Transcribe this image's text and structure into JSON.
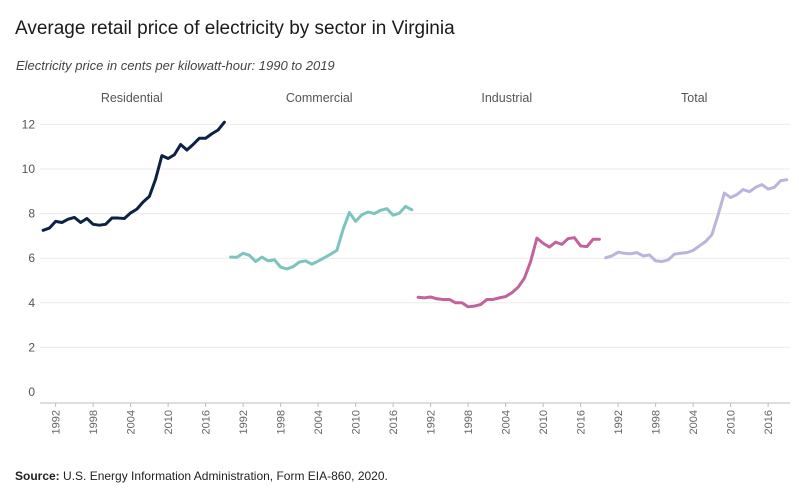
{
  "title": "Average retail price of electricity by sector in Virginia",
  "subtitle": "Electricity price in cents per kilowatt-hour: 1990 to 2019",
  "source": {
    "label": "Source:",
    "text": "U.S. Energy Information Administration, Form EIA-860, 2020."
  },
  "chart_data": {
    "type": "line",
    "title": "Average retail price of electricity by sector in Virginia",
    "ylabel": "Electricity price in cents per kilowatt-hour",
    "ylim": [
      0,
      12.5
    ],
    "yticks": [
      0,
      2,
      4,
      6,
      8,
      10,
      12
    ],
    "xticks": [
      1992,
      1998,
      2004,
      2010,
      2016
    ],
    "xlim": [
      1989.5,
      2019.5
    ],
    "grid": true,
    "x": [
      1990,
      1991,
      1992,
      1993,
      1994,
      1995,
      1996,
      1997,
      1998,
      1999,
      2000,
      2001,
      2002,
      2003,
      2004,
      2005,
      2006,
      2007,
      2008,
      2009,
      2010,
      2011,
      2012,
      2013,
      2014,
      2015,
      2016,
      2017,
      2018,
      2019
    ],
    "series": [
      {
        "name": "Residential",
        "color": "#0d2240",
        "values": [
          7.25,
          7.35,
          7.65,
          7.6,
          7.75,
          7.83,
          7.6,
          7.78,
          7.52,
          7.48,
          7.52,
          7.8,
          7.8,
          7.78,
          8.03,
          8.2,
          8.52,
          8.77,
          9.55,
          10.6,
          10.47,
          10.64,
          11.1,
          10.85,
          11.1,
          11.38,
          11.38,
          11.58,
          11.75,
          12.1
        ]
      },
      {
        "name": "Commercial",
        "color": "#7dc4be",
        "values": [
          6.05,
          6.04,
          6.22,
          6.13,
          5.85,
          6.05,
          5.88,
          5.93,
          5.6,
          5.52,
          5.62,
          5.83,
          5.88,
          5.73,
          5.87,
          6.02,
          6.18,
          6.35,
          7.3,
          8.05,
          7.65,
          7.95,
          8.07,
          8.0,
          8.15,
          8.22,
          7.93,
          8.02,
          8.32,
          8.17
        ]
      },
      {
        "name": "Industrial",
        "color": "#c2639b",
        "values": [
          4.25,
          4.22,
          4.26,
          4.18,
          4.15,
          4.15,
          4.0,
          4.0,
          3.82,
          3.85,
          3.92,
          4.15,
          4.15,
          4.22,
          4.28,
          4.45,
          4.7,
          5.1,
          5.85,
          6.9,
          6.67,
          6.5,
          6.72,
          6.62,
          6.88,
          6.92,
          6.55,
          6.52,
          6.85,
          6.85
        ]
      },
      {
        "name": "Total",
        "color": "#b9b5dd",
        "values": [
          6.02,
          6.1,
          6.27,
          6.22,
          6.2,
          6.25,
          6.1,
          6.15,
          5.88,
          5.85,
          5.92,
          6.18,
          6.22,
          6.25,
          6.35,
          6.55,
          6.75,
          7.05,
          7.95,
          8.92,
          8.72,
          8.85,
          9.08,
          8.98,
          9.18,
          9.3,
          9.1,
          9.18,
          9.48,
          9.52
        ]
      }
    ]
  }
}
